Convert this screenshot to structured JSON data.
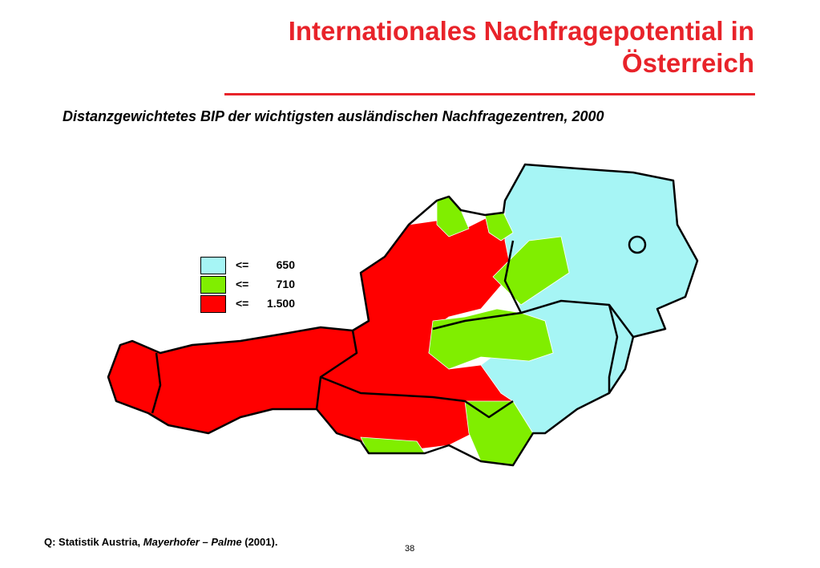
{
  "header": {
    "title_line1": "Internationales Nachfragepotential in",
    "title_line2": "Österreich",
    "subtitle": "Distanzgewichtetes BIP der wichtigsten ausländischen Nachfragezentren, 2000"
  },
  "legend": [
    {
      "symbol": "<=",
      "label": "650"
    },
    {
      "symbol": "<=",
      "label": "710"
    },
    {
      "symbol": "<=",
      "label": "1.500"
    }
  ],
  "footer": {
    "source_prefix": "Q: Statistik Austria,",
    "source_authors": "Mayerhofer – Palme",
    "source_year": "(2001).",
    "page_number": "38"
  }
}
